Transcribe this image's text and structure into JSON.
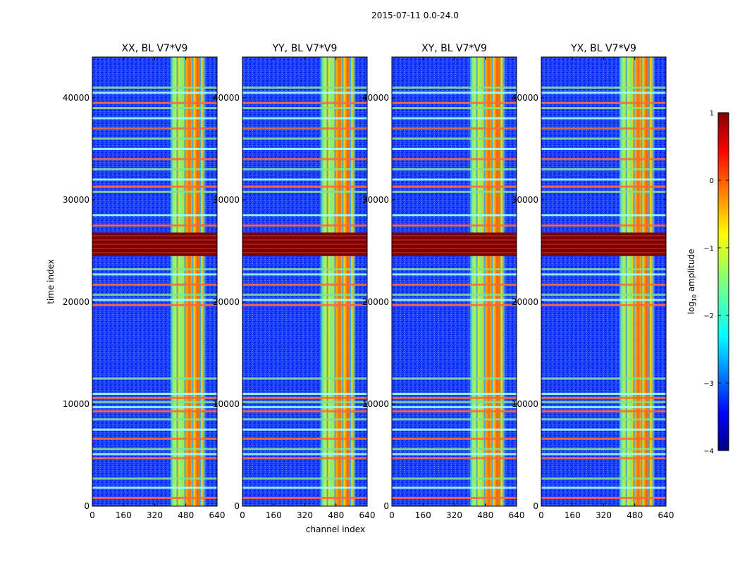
{
  "figure": {
    "suptitle": "2015-07-11 0.0-24.0",
    "xlabel": "channel index",
    "ylabel": "time index"
  },
  "chart_data": {
    "type": "heatmap",
    "title": "2015-07-11 0.0-24.0",
    "xlabel": "channel index",
    "ylabel": "time index",
    "xlim": [
      0,
      640
    ],
    "ylim": [
      0,
      44000
    ],
    "xticks": [
      0,
      160,
      320,
      480,
      640
    ],
    "yticks": [
      0,
      10000,
      20000,
      30000,
      40000
    ],
    "panels": [
      {
        "title": "XX, BL V7*V9",
        "polarization": "XX"
      },
      {
        "title": "YY, BL V7*V9",
        "polarization": "YY"
      },
      {
        "title": "XY, BL V7*V9",
        "polarization": "XY"
      },
      {
        "title": "YX, BL V7*V9",
        "polarization": "YX"
      }
    ],
    "colorbar": {
      "label": "log10 amplitude",
      "label_base": "log",
      "label_sub": "10",
      "label_rest": " amplitude",
      "range": [
        -4,
        1
      ],
      "ticks": [
        1,
        0,
        -1,
        -2,
        -3,
        -4
      ],
      "tick_labels": [
        "1",
        "0",
        "−1",
        "−2",
        "−3",
        "−4"
      ],
      "colormap": "jet"
    },
    "features": {
      "background_level": -3.0,
      "rfi_channel_band": [
        400,
        580
      ],
      "saturated_time_range": [
        24500,
        26800
      ],
      "horizontal_flag_rows_time": [
        800,
        1800,
        2700,
        4700,
        5100,
        5600,
        6600,
        7500,
        8500,
        9300,
        9700,
        10200,
        10600,
        11000,
        12500,
        19700,
        20200,
        20700,
        21700,
        22700,
        23200,
        27500,
        28500,
        30800,
        31300,
        32000,
        33000,
        34000,
        35000,
        36000,
        37000,
        38000,
        39000,
        39500,
        40500,
        41000
      ]
    }
  }
}
